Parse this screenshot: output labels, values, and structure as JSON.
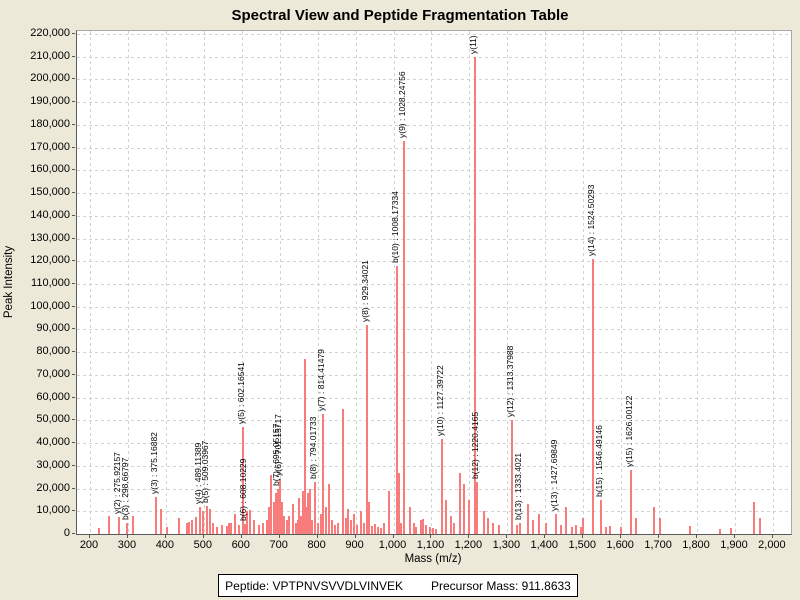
{
  "title": "Spectral View and Peptide Fragmentation Table",
  "footer": {
    "peptide": "Peptide: VPTPNVSVVDLVINVEK",
    "precursor_mass": "Precursor Mass: 911.8633"
  },
  "colors": {
    "background": "#ece9d8",
    "plot_background": "#ffffff",
    "peak": "#f87c7c",
    "gridline": "#d2d2d2",
    "plot_border": "#a8a8a8",
    "axis_line": "#5a5a5a",
    "text": "#000000"
  },
  "chart_data": {
    "type": "bar",
    "title": "Spectral View and Peptide Fragmentation Table",
    "xlabel": "Mass (m/z)",
    "ylabel": "Peak Intensity",
    "xlim": [
      165,
      2050
    ],
    "ylim": [
      0,
      221000
    ],
    "grid": "dashed",
    "legend": "none",
    "x_tick_values": [
      200,
      300,
      400,
      500,
      600,
      700,
      800,
      900,
      1000,
      1100,
      1200,
      1300,
      1400,
      1500,
      1600,
      1700,
      1800,
      1900,
      2000
    ],
    "x_tick_labels": [
      "200",
      "300",
      "400",
      "500",
      "600",
      "700",
      "800",
      "900",
      "1,000",
      "1,100",
      "1,200",
      "1,300",
      "1,400",
      "1,500",
      "1,600",
      "1,700",
      "1,800",
      "1,900",
      "2,000"
    ],
    "y_tick_values": [
      0,
      10000,
      20000,
      30000,
      40000,
      50000,
      60000,
      70000,
      80000,
      90000,
      100000,
      110000,
      120000,
      130000,
      140000,
      150000,
      160000,
      170000,
      180000,
      190000,
      200000,
      210000,
      220000
    ],
    "y_tick_labels": [
      "0",
      "10,000",
      "20,000",
      "30,000",
      "40,000",
      "50,000",
      "60,000",
      "70,000",
      "80,000",
      "90,000",
      "100,000",
      "110,000",
      "120,000",
      "130,000",
      "140,000",
      "150,000",
      "160,000",
      "170,000",
      "180,000",
      "190,000",
      "200,000",
      "210,000",
      "220,000"
    ],
    "peaks": [
      [
        224,
        2500,
        null
      ],
      [
        250,
        8000,
        null
      ],
      [
        275.92157,
        7500,
        "y(2) : 275.92157"
      ],
      [
        298.66797,
        5000,
        "b(3) : 298.66797"
      ],
      [
        313,
        8000,
        null
      ],
      [
        375.16882,
        16500,
        "y(3) : 375.16882"
      ],
      [
        387,
        11000,
        null
      ],
      [
        403,
        3000,
        null
      ],
      [
        435,
        7000,
        null
      ],
      [
        456,
        5000,
        null
      ],
      [
        462,
        5500,
        null
      ],
      [
        469,
        6000,
        null
      ],
      [
        480,
        7500,
        null
      ],
      [
        489.11389,
        12000,
        "y(4) : 489.11389"
      ],
      [
        497,
        10000,
        null
      ],
      [
        509.03967,
        12500,
        "b(5) : 509.03967"
      ],
      [
        516,
        11000,
        null
      ],
      [
        524,
        5000,
        null
      ],
      [
        536,
        3000,
        null
      ],
      [
        548,
        4000,
        null
      ],
      [
        560,
        3500,
        null
      ],
      [
        566,
        5000,
        null
      ],
      [
        571,
        5000,
        null
      ],
      [
        583,
        9000,
        null
      ],
      [
        592,
        4000,
        null
      ],
      [
        602.16541,
        47000,
        "y(5) : 602.16541"
      ],
      [
        608.10229,
        4500,
        "b(6) : 608.10229"
      ],
      [
        614,
        10000,
        null
      ],
      [
        622,
        10500,
        null
      ],
      [
        633,
        6000,
        null
      ],
      [
        645,
        4000,
        null
      ],
      [
        655,
        5000,
        null
      ],
      [
        666,
        6000,
        null
      ],
      [
        672,
        12000,
        null
      ],
      [
        677,
        26000,
        null
      ],
      [
        684,
        14000,
        null
      ],
      [
        690,
        18000,
        null
      ],
      [
        695.05157,
        20000,
        "b(7) : 695.05157"
      ],
      [
        701.15717,
        24000,
        "y(6) : 701.15717"
      ],
      [
        706,
        14000,
        null
      ],
      [
        712,
        8000,
        null
      ],
      [
        718,
        6000,
        null
      ],
      [
        724,
        8000,
        null
      ],
      [
        735,
        13000,
        null
      ],
      [
        742,
        5000,
        null
      ],
      [
        747,
        6000,
        null
      ],
      [
        751,
        16000,
        null
      ],
      [
        756,
        8000,
        null
      ],
      [
        761,
        19000,
        null
      ],
      [
        766,
        77000,
        null
      ],
      [
        770,
        12000,
        null
      ],
      [
        774,
        18000,
        null
      ],
      [
        779,
        20000,
        null
      ],
      [
        786,
        6000,
        null
      ],
      [
        794.01733,
        23000,
        "b(8) : 794.01733"
      ],
      [
        802,
        5000,
        null
      ],
      [
        808,
        9000,
        null
      ],
      [
        814.41479,
        53000,
        "y(7) : 814.41479"
      ],
      [
        822,
        12000,
        null
      ],
      [
        830,
        22000,
        null
      ],
      [
        838,
        6000,
        null
      ],
      [
        846,
        4000,
        null
      ],
      [
        854,
        5000,
        null
      ],
      [
        867,
        55000,
        null
      ],
      [
        874,
        7000,
        null
      ],
      [
        881,
        11000,
        null
      ],
      [
        889,
        6000,
        null
      ],
      [
        897,
        9000,
        null
      ],
      [
        905,
        4000,
        null
      ],
      [
        913,
        10000,
        null
      ],
      [
        921,
        5000,
        null
      ],
      [
        929.34021,
        92000,
        "y(8) : 929.34021"
      ],
      [
        936,
        14000,
        null
      ],
      [
        943,
        3500,
        null
      ],
      [
        950,
        4500,
        null
      ],
      [
        958,
        3000,
        null
      ],
      [
        966,
        2500,
        null
      ],
      [
        975,
        5000,
        null
      ],
      [
        988,
        19000,
        null
      ],
      [
        1008.17334,
        118000,
        "b(10) : 1008.17334"
      ],
      [
        1014,
        27000,
        null
      ],
      [
        1020,
        5000,
        null
      ],
      [
        1028.24756,
        173000,
        "y(9) : 1028.24756"
      ],
      [
        1043,
        12000,
        null
      ],
      [
        1054,
        5000,
        null
      ],
      [
        1060,
        3000,
        null
      ],
      [
        1072,
        6000,
        null
      ],
      [
        1078,
        6500,
        null
      ],
      [
        1085,
        4000,
        null
      ],
      [
        1095,
        3000,
        null
      ],
      [
        1103,
        2500,
        null
      ],
      [
        1112,
        2000,
        null
      ],
      [
        1127.39722,
        42000,
        "y(10) : 1127.39722"
      ],
      [
        1138,
        15000,
        null
      ],
      [
        1151,
        8000,
        null
      ],
      [
        1160,
        5000,
        null
      ],
      [
        1175,
        27000,
        null
      ],
      [
        1186,
        22000,
        null
      ],
      [
        1199,
        15000,
        null
      ],
      [
        1214.7,
        210000,
        "y(11)"
      ],
      [
        1220.4165,
        23000,
        "b(12) : 1220.4165"
      ],
      [
        1239,
        10000,
        null
      ],
      [
        1249,
        7000,
        null
      ],
      [
        1262,
        5000,
        null
      ],
      [
        1278,
        4000,
        null
      ],
      [
        1313.37988,
        50000,
        "y(12) : 1313.37988"
      ],
      [
        1325,
        4000,
        null
      ],
      [
        1333.4021,
        5000,
        "b(13) : 1333.4021"
      ],
      [
        1355,
        13000,
        null
      ],
      [
        1368,
        6000,
        null
      ],
      [
        1384,
        9000,
        null
      ],
      [
        1402,
        5000,
        null
      ],
      [
        1427.69849,
        9000,
        "y(13) : 1427.69849"
      ],
      [
        1442,
        4000,
        null
      ],
      [
        1455,
        12000,
        null
      ],
      [
        1470,
        3000,
        null
      ],
      [
        1480,
        4000,
        null
      ],
      [
        1493,
        3000,
        null
      ],
      [
        1500,
        7000,
        null
      ],
      [
        1524.50293,
        121000,
        "y(14) : 1524.50293"
      ],
      [
        1546.49146,
        15000,
        "b(15) : 1546.49146"
      ],
      [
        1560,
        3000,
        null
      ],
      [
        1570,
        3500,
        null
      ],
      [
        1600,
        3000,
        null
      ],
      [
        1626.00122,
        28000,
        "y(15) : 1626.00122"
      ],
      [
        1639,
        7000,
        null
      ],
      [
        1687,
        12000,
        null
      ],
      [
        1703,
        7000,
        null
      ],
      [
        1782,
        3500,
        null
      ],
      [
        1860,
        2000,
        null
      ],
      [
        1890,
        2500,
        null
      ],
      [
        1951,
        14000,
        null
      ],
      [
        1966,
        7000,
        null
      ]
    ]
  }
}
